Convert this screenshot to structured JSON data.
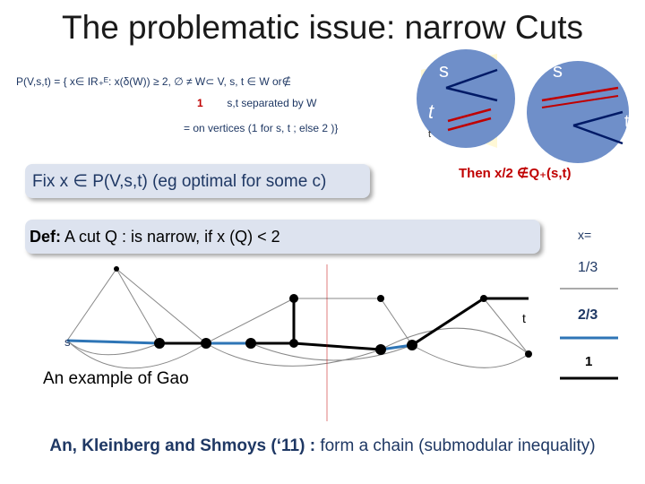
{
  "title": "The problematic issue: narrow Cuts",
  "definition": {
    "line1": "P(V,s,t) = { x∈ IR₊ᴱ: x(δ(W)) ≥ 2, ∅ ≠ W⊂ V, s, t ∈ W or∉",
    "line2_num": "1",
    "line2_text": "s,t separated by W",
    "line3": "=  on vertices (1 for s, t ; else 2 )}"
  },
  "fix_box": "Fix x ∈ P(V,s,t)  (eg optimal for some c)",
  "def_box": {
    "bold": "Def:",
    "text": "A cut Q :  is narrow, if  x (Q) < 2",
    "right": "x="
  },
  "then_text": "Then x/2 ∉Q₊(s,t)",
  "bubble_labels": {
    "s_left": "s",
    "t_left": "t",
    "t_left_small": "t",
    "s_right": "s",
    "t_right": "t"
  },
  "legend": {
    "one_third": "1/3",
    "two_thirds": "2/3",
    "one": "1"
  },
  "graph_labels": {
    "s": "s",
    "t": "t"
  },
  "example_caption": "An example of Gao",
  "bottom_bold": "An, Kleinberg and Shmoys (‘11) :",
  "bottom_rest": "form a chain  (submodular inequality)",
  "colors": {
    "title": "#1a1a1a",
    "blue_text": "#1f3864",
    "red_text": "#c00000",
    "box_fill": "#dde3ef",
    "circle_fill": "#6f8fc9",
    "edge_blue": "#2e75b6",
    "edge_red": "#c00000"
  }
}
